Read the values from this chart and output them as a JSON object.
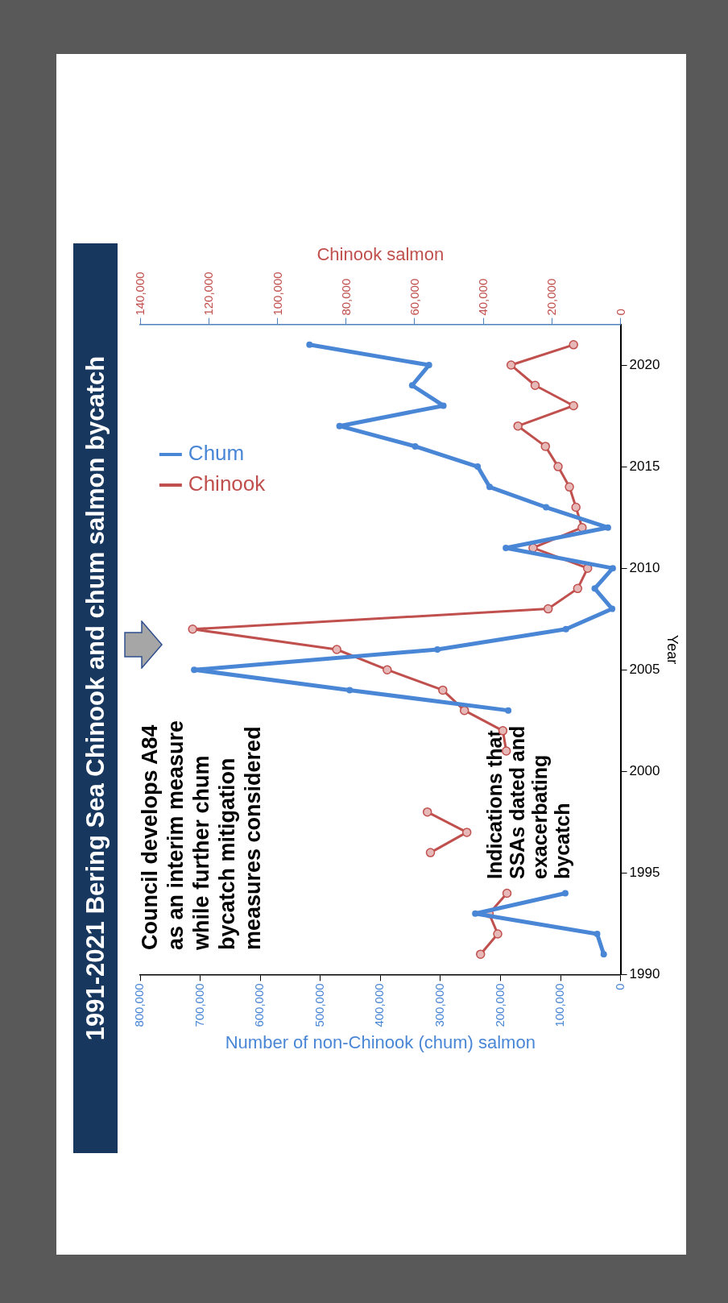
{
  "chart_data": {
    "type": "line",
    "orientation": "horizontal",
    "title": "1991-2021 Bering Sea Chinook and chum salmon bycatch",
    "ylabel": "Year",
    "xlabel": "Number of non-Chinook (chum) salmon",
    "x2label": "Chinook salmon",
    "x": [
      1991,
      1992,
      1993,
      1994,
      1995,
      1996,
      1997,
      1998,
      1999,
      2000,
      2001,
      2002,
      2003,
      2004,
      2005,
      2006,
      2007,
      2008,
      2009,
      2010,
      2011,
      2012,
      2013,
      2014,
      2015,
      2016,
      2017,
      2018,
      2019,
      2020,
      2021
    ],
    "series": [
      {
        "name": "Chum",
        "color": "#4a86d6",
        "values": [
          28000,
          39000,
          242000,
          92000,
          null,
          null,
          null,
          null,
          null,
          null,
          null,
          null,
          187000,
          451000,
          710000,
          305000,
          91000,
          14000,
          43000,
          13000,
          191000,
          21000,
          124000,
          218000,
          238000,
          342000,
          468000,
          295000,
          347000,
          319000,
          518000
        ]
      },
      {
        "name": "Chinook",
        "color": "#c0504d",
        "axis": "x2",
        "values": [
          40800,
          35800,
          38300,
          33100,
          null,
          55400,
          44800,
          56300,
          null,
          null,
          33300,
          34300,
          45500,
          51800,
          68000,
          82700,
          124700,
          21100,
          12500,
          9600,
          25500,
          11200,
          13000,
          14900,
          18200,
          21900,
          29900,
          13700,
          24900,
          31900,
          13700
        ]
      }
    ],
    "ylim": [
      1990,
      2022
    ],
    "yticks": [
      1990,
      1995,
      2000,
      2005,
      2010,
      2015,
      2020
    ],
    "xlim": [
      800000,
      0
    ],
    "xticks": [
      0,
      {
        "value": 100000,
        "label": "100,000"
      },
      {
        "value": 200000,
        "label": "200,000"
      },
      {
        "value": 300000,
        "label": "300,000"
      },
      {
        "value": 400000,
        "label": "400,000"
      },
      {
        "value": 500000,
        "label": "500,000"
      },
      {
        "value": 600000,
        "label": "600,000"
      },
      {
        "value": 700000,
        "label": "700,000"
      },
      {
        "value": 800000,
        "label": "800,000"
      }
    ],
    "x2lim": [
      140000,
      0
    ],
    "x2ticks": [
      0,
      {
        "value": 20000,
        "label": "20,000"
      },
      {
        "value": 40000,
        "label": "40,000"
      },
      {
        "value": 60000,
        "label": "60,000"
      },
      {
        "value": 80000,
        "label": "80,000"
      },
      {
        "value": 100000,
        "label": "100,000"
      },
      {
        "value": 120000,
        "label": "120,000"
      },
      {
        "value": 140000,
        "label": "140,000"
      }
    ],
    "legend": "top left",
    "marker": "circle",
    "annotations": [
      "Council develops A84 as an interim measure while further chum bycatch mitigation measures considered",
      "Indications that SSAs dated and exacerbating bycatch"
    ]
  }
}
